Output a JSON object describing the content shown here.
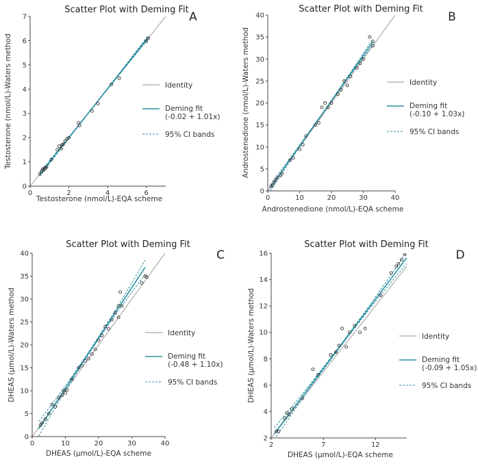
{
  "colors": {
    "identity": "#a6a6a6",
    "fit": "#2b8fa3",
    "ci": "#2b8fa3",
    "points": "#333333",
    "axis": "#444444"
  },
  "chart_data": [
    {
      "panel": "A",
      "type": "scatter",
      "title": "Scatter Plot with Deming Fit",
      "xlabel": "Testosterone (nmol/L)-EQA scheme",
      "ylabel": "Testosterone (nmol/L)-Waters method",
      "xlim": [
        0,
        7
      ],
      "ylim": [
        0,
        7
      ],
      "xticks": [
        0,
        2,
        4,
        6
      ],
      "yticks": [
        0,
        1,
        2,
        3,
        4,
        5,
        6,
        7
      ],
      "fit": {
        "intercept": -0.02,
        "slope": 1.01
      },
      "ci_half_width_at_max": 0.08,
      "fit_range": [
        0.5,
        6.1
      ],
      "legend": {
        "identity": "Identity",
        "fit_line1": "Deming fit",
        "fit_line2": "(-0.02 + 1.01x)",
        "ci": "95% CI bands"
      },
      "points": [
        [
          0.5,
          0.5
        ],
        [
          0.6,
          0.62
        ],
        [
          0.65,
          0.7
        ],
        [
          0.7,
          0.66
        ],
        [
          0.75,
          0.75
        ],
        [
          0.8,
          0.74
        ],
        [
          0.85,
          0.8
        ],
        [
          1.1,
          1.1
        ],
        [
          1.4,
          1.5
        ],
        [
          1.5,
          1.65
        ],
        [
          1.6,
          1.55
        ],
        [
          1.65,
          1.7
        ],
        [
          1.7,
          1.72
        ],
        [
          1.8,
          1.85
        ],
        [
          1.9,
          1.95
        ],
        [
          2.0,
          2.0
        ],
        [
          2.5,
          2.6
        ],
        [
          2.55,
          2.5
        ],
        [
          3.2,
          3.1
        ],
        [
          3.5,
          3.4
        ],
        [
          4.2,
          4.2
        ],
        [
          4.6,
          4.45
        ],
        [
          6.0,
          5.98
        ],
        [
          6.1,
          6.1
        ]
      ]
    },
    {
      "panel": "B",
      "type": "scatter",
      "title": "Scatter Plot with Deming Fit",
      "xlabel": "Androstenedione (nmol/L)-EQA scheme",
      "ylabel": "Androstenedione (nmol/L)-Waters method",
      "xlim": [
        0,
        40
      ],
      "ylim": [
        0,
        40
      ],
      "xticks": [
        0,
        10,
        20,
        30,
        40
      ],
      "yticks": [
        0,
        5,
        10,
        15,
        20,
        25,
        30,
        35,
        40
      ],
      "fit": {
        "intercept": -0.1,
        "slope": 1.03
      },
      "ci_half_width_at_max": 0.7,
      "fit_range": [
        0.8,
        33
      ],
      "legend": {
        "identity": "Identity",
        "fit_line1": "Deming fit",
        "fit_line2": "(-0.10 + 1.03x)",
        "ci": "95% CI bands"
      },
      "points": [
        [
          1,
          1
        ],
        [
          1.5,
          1.3
        ],
        [
          2,
          2
        ],
        [
          2.5,
          2.4
        ],
        [
          3,
          3
        ],
        [
          4,
          3.5
        ],
        [
          4.5,
          4
        ],
        [
          7,
          7
        ],
        [
          8,
          7.5
        ],
        [
          10,
          9.5
        ],
        [
          11,
          10.5
        ],
        [
          12,
          12.5
        ],
        [
          15,
          15
        ],
        [
          16,
          15.5
        ],
        [
          17,
          19
        ],
        [
          18,
          20
        ],
        [
          19,
          19
        ],
        [
          20,
          20
        ],
        [
          22,
          22
        ],
        [
          23,
          23
        ],
        [
          24,
          25
        ],
        [
          25,
          24
        ],
        [
          26,
          26
        ],
        [
          28,
          28
        ],
        [
          29,
          29
        ],
        [
          30,
          30
        ],
        [
          32,
          35
        ],
        [
          33,
          33
        ],
        [
          33,
          34
        ]
      ]
    },
    {
      "panel": "C",
      "type": "scatter",
      "title": "Scatter Plot with Deming Fit",
      "xlabel": "DHEAS (µmol/L)-EQA scheme",
      "ylabel": "DHEAS (µmol/L)-Waters method",
      "xlim": [
        0,
        40
      ],
      "ylim": [
        0,
        40
      ],
      "xticks": [
        0,
        10,
        20,
        30,
        40
      ],
      "yticks": [
        0,
        5,
        10,
        15,
        20,
        25,
        30,
        35,
        40
      ],
      "fit": {
        "intercept": -0.48,
        "slope": 1.1
      },
      "ci_half_width_at_max": 1.6,
      "fit_range": [
        2,
        34
      ],
      "legend": {
        "identity": "Identity",
        "fit_line1": "Deming fit",
        "fit_line2": "(-0.48 + 1.10x)",
        "ci": "95% CI bands"
      },
      "points": [
        [
          2.5,
          2.5
        ],
        [
          3,
          3
        ],
        [
          4,
          3.8
        ],
        [
          5,
          5
        ],
        [
          6,
          7
        ],
        [
          7,
          6.5
        ],
        [
          8,
          8.5
        ],
        [
          9,
          9
        ],
        [
          9.5,
          10
        ],
        [
          10,
          9.5
        ],
        [
          10.5,
          10.2
        ],
        [
          12,
          12.5
        ],
        [
          14,
          15
        ],
        [
          15,
          15.5
        ],
        [
          16,
          16.5
        ],
        [
          17,
          17
        ],
        [
          18,
          18
        ],
        [
          19,
          19
        ],
        [
          20,
          21
        ],
        [
          21,
          22
        ],
        [
          22,
          24
        ],
        [
          23,
          23.5
        ],
        [
          24,
          25.5
        ],
        [
          25,
          27
        ],
        [
          26,
          26
        ],
        [
          26,
          28.5
        ],
        [
          26.5,
          31.5
        ],
        [
          27,
          28.5
        ],
        [
          33,
          33.5
        ],
        [
          34,
          35
        ],
        [
          34.5,
          34.8
        ]
      ]
    },
    {
      "panel": "D",
      "type": "scatter",
      "title": "Scatter Plot with Deming Fit",
      "xlabel": "DHEAS (µmol/L)-EQA scheme",
      "ylabel": "DHEAS (µmol/L)-Waters method",
      "xlim": [
        2,
        15
      ],
      "ylim": [
        2,
        16
      ],
      "xticks": [
        2,
        7,
        12
      ],
      "yticks": [
        2,
        4,
        6,
        8,
        10,
        12,
        14,
        16
      ],
      "fit": {
        "intercept": -0.09,
        "slope": 1.05
      },
      "ci_half_width_at_max": 0.45,
      "fit_range": [
        2.3,
        15
      ],
      "legend": {
        "identity": "Identity",
        "fit_line1": "Deming fit",
        "fit_line2": "(-0.09 + 1.05x)",
        "ci": "95% CI bands"
      },
      "points": [
        [
          2.5,
          2.5
        ],
        [
          2.7,
          2.5
        ],
        [
          3.3,
          3.5
        ],
        [
          3.5,
          3.9
        ],
        [
          3.7,
          3.8
        ],
        [
          4,
          4.2
        ],
        [
          5,
          5
        ],
        [
          6,
          7.2
        ],
        [
          6.5,
          6.8
        ],
        [
          7.7,
          8.3
        ],
        [
          8.2,
          8.5
        ],
        [
          8.5,
          9
        ],
        [
          8.8,
          10.3
        ],
        [
          9.2,
          8.9
        ],
        [
          9.5,
          10
        ],
        [
          10,
          10.5
        ],
        [
          10.5,
          10
        ],
        [
          11,
          10.3
        ],
        [
          12.5,
          12.8
        ],
        [
          13.5,
          14.5
        ],
        [
          14,
          15
        ],
        [
          14.2,
          15.2
        ],
        [
          14.5,
          15.5
        ],
        [
          14.8,
          15.9
        ]
      ]
    }
  ]
}
